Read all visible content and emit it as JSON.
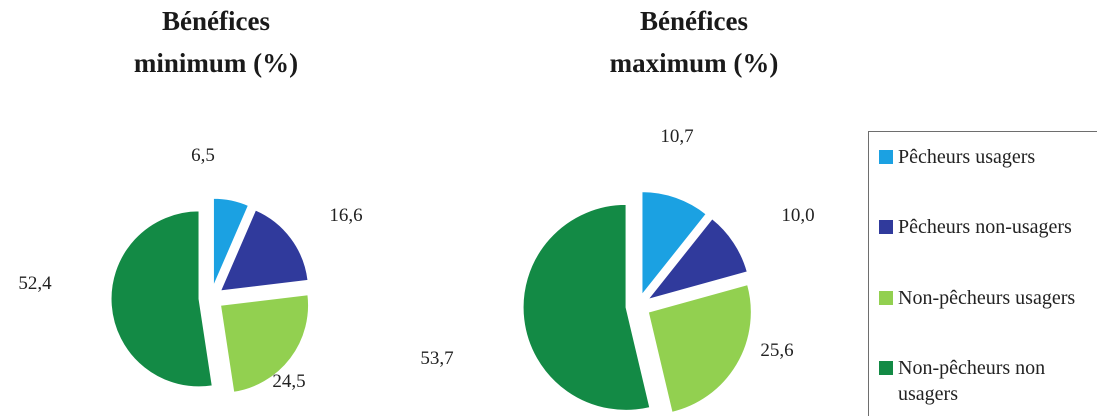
{
  "chart_data": [
    {
      "type": "pie",
      "title_lines": [
        "Bénéfices",
        "minimum (%)"
      ],
      "categories": [
        "Pêcheurs usagers",
        "Pêcheurs non-usagers",
        "Non-pêcheurs usagers",
        "Non-pêcheurs non usagers"
      ],
      "values": [
        6.5,
        16.6,
        24.5,
        52.4
      ],
      "labels": [
        "6,5",
        "16,6",
        "24,5",
        "52,4"
      ],
      "colors": [
        "#1ba1e2",
        "#303a9c",
        "#92d050",
        "#138a45"
      ]
    },
    {
      "type": "pie",
      "title_lines": [
        "Bénéfices",
        "maximum (%)"
      ],
      "categories": [
        "Pêcheurs usagers",
        "Pêcheurs non-usagers",
        "Non-pêcheurs usagers",
        "Non-pêcheurs non usagers"
      ],
      "values": [
        10.7,
        10.0,
        25.6,
        53.7
      ],
      "labels": [
        "10,7",
        "10,0",
        "25,6",
        "53,7"
      ],
      "colors": [
        "#1ba1e2",
        "#303a9c",
        "#92d050",
        "#138a45"
      ]
    }
  ],
  "legend": {
    "items": [
      {
        "label": "Pêcheurs usagers",
        "color": "#1ba1e2"
      },
      {
        "label": "Pêcheurs non-usagers",
        "color": "#303a9c"
      },
      {
        "label": "Non-pêcheurs usagers",
        "color": "#92d050"
      },
      {
        "label": "Non-pêcheurs non usagers",
        "color": "#138a45"
      }
    ],
    "position": "right"
  }
}
